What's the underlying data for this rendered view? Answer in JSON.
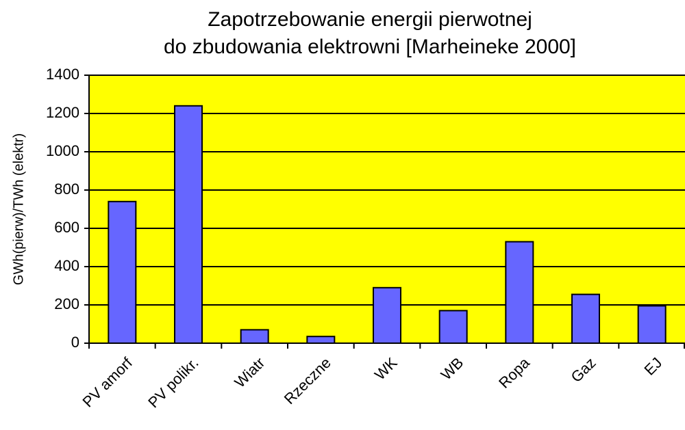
{
  "chart_data": {
    "type": "bar",
    "title": [
      "Zapotrzebowanie energii pierwotnej",
      "do zbudowania elektrowni [Marheineke 2000]"
    ],
    "y_label": "GWh(pierw)/TWh (elektr)",
    "categories": [
      "PV amorf",
      "PV polikr.",
      "Wiatr",
      "Rzeczne",
      "WK",
      "WB",
      "Ropa",
      "Gaz",
      "EJ"
    ],
    "values": [
      740,
      1240,
      70,
      35,
      290,
      170,
      530,
      255,
      195
    ],
    "color": "#6666ff",
    "background": "#ffff00",
    "ylim": [
      0,
      1400
    ],
    "yticks": [
      0,
      200,
      400,
      600,
      800,
      1000,
      1200,
      1400
    ],
    "grid": true
  }
}
